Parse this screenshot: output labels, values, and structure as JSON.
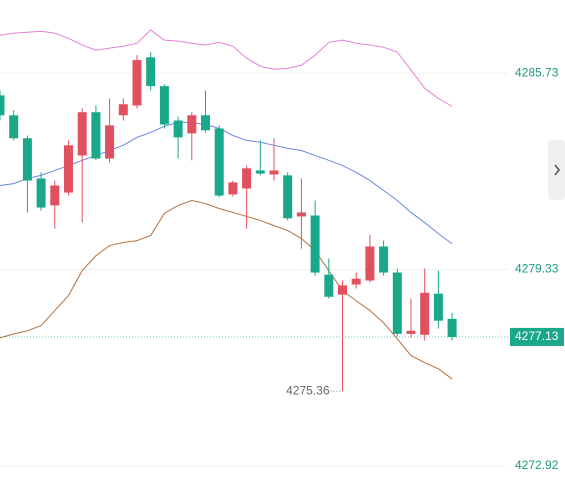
{
  "chart_data": {
    "type": "candlestick",
    "up_color": "#e0505e",
    "down_color": "#1aa88a",
    "ylim": [
      4271.68,
      4288.12
    ],
    "yticks": [
      4272.92,
      4279.33,
      4285.73
    ],
    "grid": true,
    "open": [
      4285.01,
      4284.36,
      4283.61,
      4282.3,
      4281.42,
      4281.84,
      4283.05,
      4284.46,
      4282.95,
      4284.36,
      4284.68,
      4286.25,
      4285.31,
      4284.19,
      4283.77,
      4284.36,
      4283.93,
      4281.78,
      4281.97,
      4282.56,
      4282.43,
      4282.4,
      4281.06,
      4281.09,
      4279.16,
      4278.51,
      4278.84,
      4278.97,
      4280.08,
      4279.23,
      4277.23,
      4277.2,
      4278.54,
      4277.72
    ],
    "high": [
      4285.17,
      4284.52,
      4283.7,
      4282.5,
      4282.23,
      4283.54,
      4284.59,
      4284.68,
      4284.91,
      4284.91,
      4286.32,
      4286.42,
      4285.37,
      4284.32,
      4284.46,
      4285.17,
      4284.03,
      4282.23,
      4282.72,
      4283.54,
      4283.61,
      4282.5,
      4282.3,
      4281.58,
      4279.69,
      4278.97,
      4279.23,
      4280.47,
      4280.27,
      4279.36,
      4278.38,
      4279.36,
      4279.29,
      4277.92
    ],
    "low": [
      4284.19,
      4283.54,
      4281.19,
      4281.25,
      4280.66,
      4281.74,
      4280.86,
      4282.89,
      4282.82,
      4284.19,
      4284.59,
      4285.17,
      4283.93,
      4282.95,
      4282.89,
      4283.8,
      4281.68,
      4281.71,
      4280.66,
      4282.4,
      4282.23,
      4280.93,
      4280.01,
      4279.13,
      4278.38,
      4275.36,
      4278.71,
      4278.9,
      4279.13,
      4277.14,
      4277.1,
      4277.01,
      4277.4,
      4277.01
    ],
    "close": [
      4284.36,
      4283.61,
      4282.23,
      4281.35,
      4282.07,
      4283.38,
      4284.46,
      4282.95,
      4284.03,
      4284.72,
      4286.16,
      4285.31,
      4284.06,
      4283.64,
      4284.36,
      4283.87,
      4281.74,
      4282.17,
      4282.63,
      4282.46,
      4282.56,
      4281.0,
      4281.19,
      4279.23,
      4278.44,
      4278.81,
      4279.03,
      4280.08,
      4279.23,
      4277.23,
      4277.33,
      4278.57,
      4277.66,
      4277.13
    ],
    "lines": [
      {
        "color": "#e57fd8",
        "values": [
          4286.97,
          4287.04,
          4287.07,
          4287.1,
          4287.04,
          4286.87,
          4286.65,
          4286.48,
          4286.55,
          4286.61,
          4286.71,
          4287.14,
          4286.81,
          4286.78,
          4286.71,
          4286.65,
          4286.74,
          4286.61,
          4286.22,
          4285.96,
          4285.86,
          4285.89,
          4285.99,
          4286.32,
          4286.74,
          4286.81,
          4286.71,
          4286.65,
          4286.58,
          4286.42,
          4285.83,
          4285.24,
          4284.91,
          4284.65
        ]
      },
      {
        "color": "#6a86e0",
        "values": [
          4282.07,
          4282.13,
          4282.3,
          4282.4,
          4282.56,
          4282.72,
          4282.89,
          4283.05,
          4283.21,
          4283.38,
          4283.64,
          4283.8,
          4284.0,
          4284.13,
          4284.13,
          4284.06,
          4283.93,
          4283.7,
          4283.54,
          4283.48,
          4283.38,
          4283.28,
          4283.21,
          4283.05,
          4282.89,
          4282.72,
          4282.5,
          4282.23,
          4281.91,
          4281.58,
          4281.19,
          4280.86,
          4280.5,
          4280.17
        ]
      },
      {
        "color": "#b5703f",
        "values": [
          4277.1,
          4277.23,
          4277.33,
          4277.5,
          4277.99,
          4278.48,
          4279.29,
          4279.78,
          4280.11,
          4280.21,
          4280.27,
          4280.44,
          4281.16,
          4281.42,
          4281.58,
          4281.48,
          4281.32,
          4281.19,
          4281.06,
          4280.93,
          4280.76,
          4280.6,
          4280.34,
          4279.95,
          4279.29,
          4278.64,
          4278.31,
          4277.99,
          4277.59,
          4277.07,
          4276.52,
          4276.29,
          4276.09,
          4275.76
        ]
      }
    ]
  }
}
